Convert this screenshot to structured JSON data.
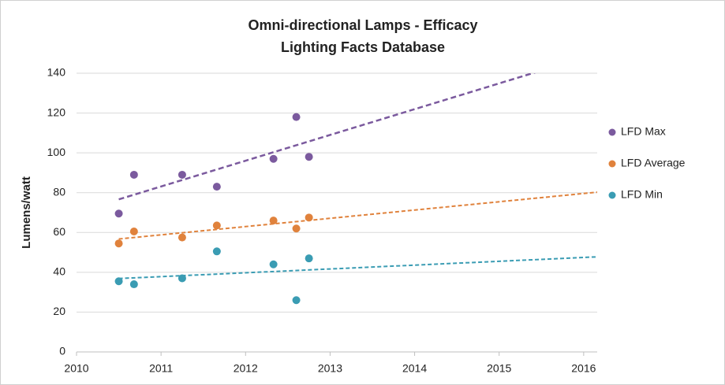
{
  "chart_data": {
    "type": "scatter",
    "title": "Omni-directional Lamps - Efficacy",
    "subtitle": "Lighting Facts Database",
    "y_label": "Lumens/watt",
    "x": [
      2010.5,
      2010.68,
      2011.25,
      2011.66,
      2012.33,
      2012.6,
      2012.75
    ],
    "series": [
      {
        "name": "LFD Max",
        "color": "#7b5a9e",
        "values": [
          69.5,
          89,
          89,
          83,
          97,
          118,
          98
        ]
      },
      {
        "name": "LFD Average",
        "color": "#e0823c",
        "values": [
          54.5,
          60.5,
          57.5,
          63.5,
          66,
          62,
          67.5
        ]
      },
      {
        "name": "LFD Min",
        "color": "#3a9cb3",
        "values": [
          35.5,
          34,
          37,
          50.5,
          44,
          26,
          47
        ]
      }
    ],
    "trendline": "linear",
    "xlim": [
      2010,
      2016.16
    ],
    "xticks": [
      2010,
      2011,
      2012,
      2013,
      2014,
      2015,
      2016
    ],
    "ylim": [
      0,
      140
    ],
    "yticks": [
      0,
      20,
      40,
      60,
      80,
      100,
      120,
      140
    ],
    "grid": true,
    "legend": "right"
  }
}
